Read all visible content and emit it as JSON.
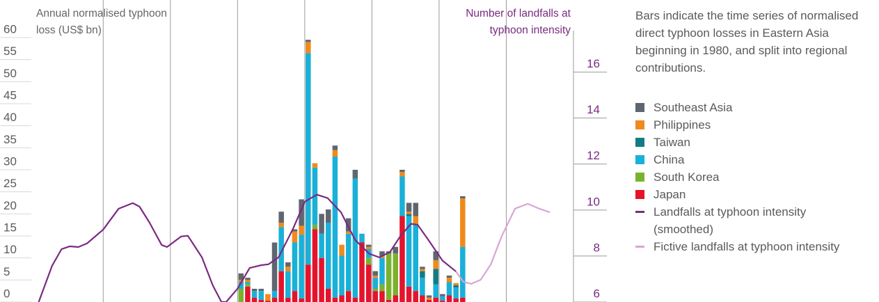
{
  "chart_data": [
    {
      "type": "bar",
      "stacked": true,
      "y_label": "Annual normalised typhoon loss (US$ bn)",
      "annotation": "Bars indicate the time series of normalised direct typhoon losses in Eastern Asia beginning in 1980, and split into regional contributions.",
      "x": [
        1980,
        1981,
        1982,
        1983,
        1984,
        1985,
        1986,
        1987,
        1988,
        1989,
        1990,
        1991,
        1992,
        1993,
        1994,
        1995,
        1996,
        1997,
        1998,
        1999,
        2000,
        2001,
        2002,
        2003,
        2004,
        2005,
        2006,
        2007,
        2008,
        2009,
        2010,
        2011,
        2012,
        2013
      ],
      "xlim": [
        1949.3,
        2030
      ],
      "xticks": [
        1960,
        1970,
        1980,
        1990,
        2000,
        2010,
        2020
      ],
      "grid": true,
      "ylim": [
        0,
        60
      ],
      "yticks": [
        0,
        5,
        10,
        15,
        20,
        25,
        30,
        35,
        40,
        45,
        50,
        55,
        60
      ],
      "series": [
        {
          "name": "Southeast Asia",
          "color": "#5f6670",
          "values": [
            1.5,
            0.5,
            0.5,
            0.5,
            0,
            11,
            2.5,
            1,
            0.5,
            6,
            0.5,
            0,
            4.5,
            3,
            1,
            0,
            3,
            2,
            0,
            0.5,
            1,
            1,
            0.5,
            1.5,
            0.5,
            2,
            3,
            0.5,
            0.5,
            2,
            0.5,
            0.5,
            0,
            0.5
          ]
        },
        {
          "name": "Philippines",
          "color": "#f08a1c",
          "values": [
            0.5,
            0.5,
            0,
            0,
            1.5,
            0,
            1,
            1,
            2.5,
            2,
            2.5,
            1,
            0,
            0,
            1.5,
            2.5,
            0.5,
            0,
            0,
            0.5,
            0.5,
            0.5,
            0,
            0,
            1,
            0.5,
            2,
            0.5,
            0.5,
            2,
            0,
            1,
            0.5,
            11
          ]
        },
        {
          "name": "Taiwan",
          "color": "#127c85",
          "values": [
            0,
            0,
            0,
            0,
            0,
            0,
            0,
            0,
            0,
            0,
            0,
            0,
            0,
            0,
            0,
            0,
            0,
            0,
            0,
            0,
            0,
            0,
            0,
            0,
            0,
            0.5,
            0,
            1.5,
            0,
            3.5,
            0,
            0,
            0.5,
            0
          ]
        },
        {
          "name": "China",
          "color": "#1ab0d8",
          "values": [
            1.5,
            0.5,
            1.5,
            2,
            0,
            1.5,
            10,
            6,
            11,
            14.5,
            48,
            13,
            5.5,
            15,
            32,
            9,
            13,
            27,
            2,
            2,
            2.5,
            6,
            0,
            0,
            9,
            16,
            15,
            4,
            0,
            3,
            1,
            3,
            2.5,
            11.5
          ]
        },
        {
          "name": "South Korea",
          "color": "#7ab22e",
          "values": [
            3,
            0.5,
            0,
            0,
            0,
            0,
            0,
            0,
            0,
            0,
            0,
            1,
            0,
            0,
            0,
            0,
            0,
            0,
            0,
            1.5,
            0.5,
            1.5,
            10.5,
            9.5,
            0,
            0,
            0,
            0,
            0,
            0,
            0,
            0,
            0,
            0
          ]
        },
        {
          "name": "Japan",
          "color": "#e3142c",
          "values": [
            0,
            3.5,
            1,
            0.5,
            0.3,
            1,
            7,
            1,
            2.5,
            0.8,
            8.5,
            16.5,
            10,
            3,
            1,
            1.5,
            2.5,
            1,
            13.5,
            8.5,
            2.5,
            2.5,
            0.5,
            1.5,
            19.5,
            3.5,
            2.5,
            1.5,
            0.5,
            1,
            0.3,
            1.5,
            0.8,
            1
          ]
        }
      ]
    },
    {
      "type": "line",
      "y_label": "Number of landfalls at typhoon intensity",
      "xlim": [
        1949.3,
        2030
      ],
      "y2lim": [
        6,
        17.5
      ],
      "y2ticks": [
        6,
        8,
        10,
        12,
        14,
        16
      ],
      "series": [
        {
          "name": "Landfalls at typhoon intensity (smoothed)",
          "color": "#7a2a82",
          "axis": "y2",
          "x": [
            1950.4,
            1952.4,
            1953.8,
            1955,
            1956.3,
            1957.6,
            1960,
            1962.3,
            1964.4,
            1965.4,
            1966.9,
            1968.7,
            1969.5,
            1971.6,
            1972.6,
            1974.7,
            1976.3,
            1977.6,
            1978.3,
            1980,
            1981.8,
            1983.5,
            1984.6,
            1986.1,
            1988.2,
            1990,
            1991.8,
            1993.4,
            1995.4,
            1997.5,
            1999.6,
            2001.1,
            2002.7,
            2004.2,
            2005.8,
            2006.8,
            2008.4,
            2010.5,
            2012.5
          ],
          "values": [
            6.0,
            7.58,
            8.3,
            8.42,
            8.39,
            8.55,
            9.15,
            10.06,
            10.3,
            10.15,
            9.45,
            8.48,
            8.39,
            8.85,
            8.88,
            7.94,
            6.73,
            6.0,
            6.0,
            6.58,
            7.48,
            7.6,
            7.64,
            7.94,
            9.15,
            10.36,
            10.67,
            10.52,
            9.9,
            8.7,
            8.1,
            7.94,
            8.18,
            8.85,
            9.4,
            9.36,
            8.7,
            7.8,
            7.33
          ]
        },
        {
          "name": "Fictive landfalls at typhoon intensity",
          "color": "#d9a5d1",
          "axis": "y2",
          "x": [
            2012.5,
            2013.6,
            2014.8,
            2016.2,
            2017.7,
            2019.3,
            2021.3,
            2023.2,
            2024.9,
            2026.5
          ],
          "values": [
            7.33,
            6.88,
            6.79,
            6.97,
            7.64,
            8.85,
            10.06,
            10.27,
            10.06,
            9.9
          ]
        }
      ]
    }
  ]
}
